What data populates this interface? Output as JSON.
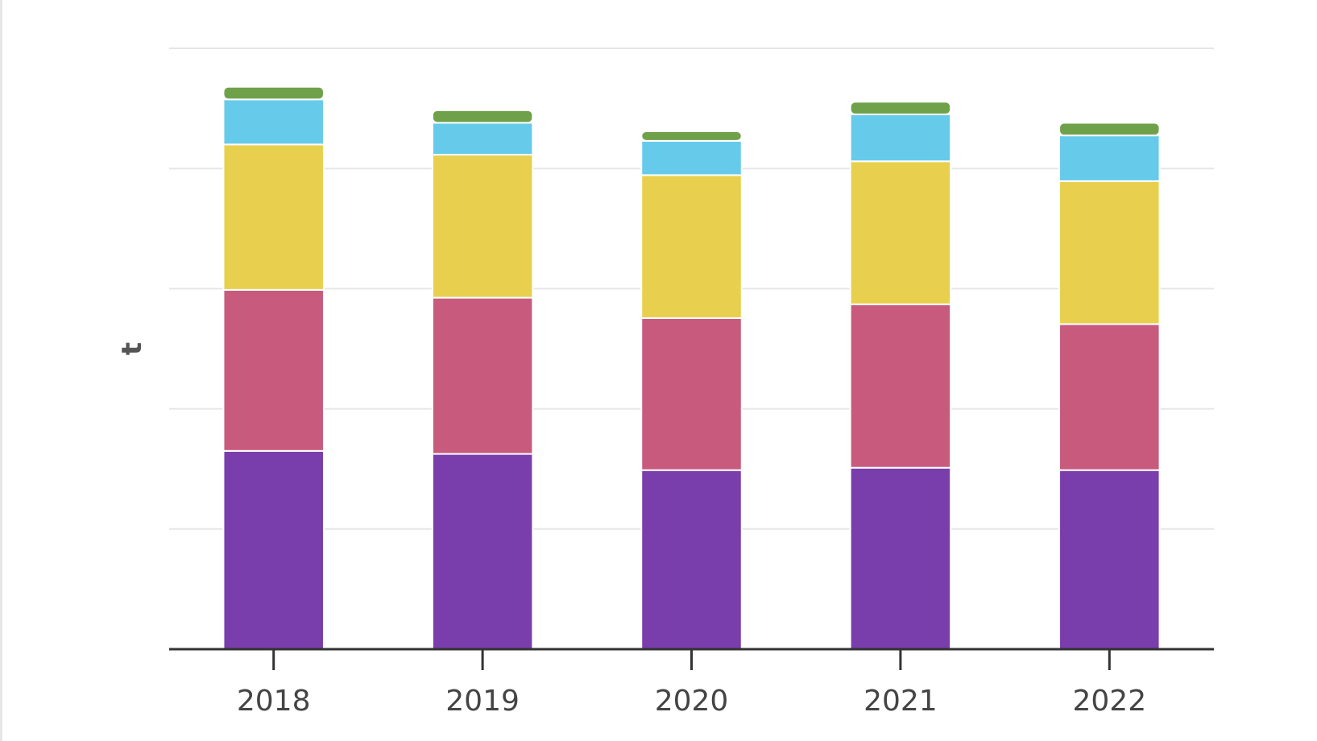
{
  "chart_data": {
    "type": "bar",
    "stacked": true,
    "categories": [
      "2018",
      "2019",
      "2020",
      "2021",
      "2022"
    ],
    "ylabel": "t",
    "xlabel": "",
    "ylim": [
      0,
      1000
    ],
    "yticks": [
      0,
      200,
      400,
      600,
      800,
      1000
    ],
    "y_tick_labels_visible": false,
    "grid": true,
    "legend": "none",
    "series": [
      {
        "color": "#7a3dac",
        "values": [
          330,
          325,
          298,
          302,
          298
        ]
      },
      {
        "color": "#c85a7e",
        "values": [
          268,
          260,
          253,
          272,
          243
        ]
      },
      {
        "color": "#e8d04e",
        "values": [
          242,
          238,
          238,
          238,
          238
        ]
      },
      {
        "color": "#66cbea",
        "values": [
          75,
          53,
          57,
          78,
          76
        ]
      },
      {
        "color": "#6fa14a",
        "values": [
          21,
          21,
          16,
          21,
          21
        ]
      }
    ]
  }
}
